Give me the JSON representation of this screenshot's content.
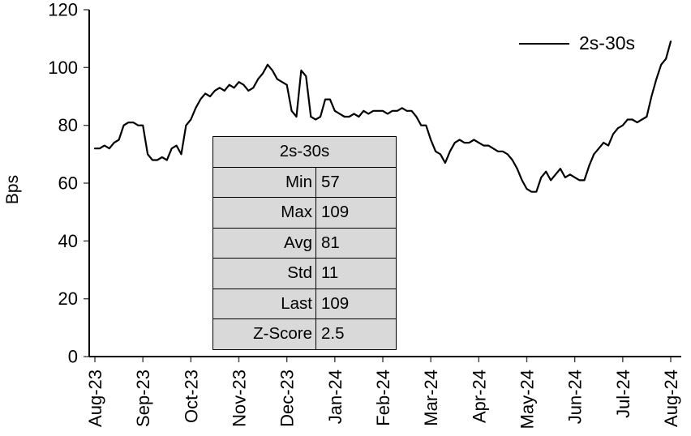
{
  "chart_data": {
    "type": "line",
    "title": "",
    "xlabel": "",
    "ylabel": "Bps",
    "ylim": [
      0,
      120
    ],
    "yticks": [
      0,
      20,
      40,
      60,
      80,
      100,
      120
    ],
    "x_tick_labels": [
      "Aug-23",
      "Sep-23",
      "Oct-23",
      "Nov-23",
      "Dec-23",
      "Jan-24",
      "Feb-24",
      "Mar-24",
      "Apr-24",
      "May-24",
      "Jun-24",
      "Jul-24",
      "Aug-24"
    ],
    "grid": false,
    "legend": {
      "label": "2s-30s",
      "color": "#000000",
      "position": "top-right"
    },
    "series": [
      {
        "name": "2s-30s",
        "color": "#000000",
        "values": [
          72,
          72,
          73,
          72,
          74,
          75,
          80,
          81,
          81,
          80,
          80,
          70,
          68,
          68,
          69,
          68,
          72,
          73,
          70,
          80,
          82,
          86,
          89,
          91,
          90,
          92,
          93,
          92,
          94,
          93,
          95,
          94,
          92,
          93,
          96,
          98,
          101,
          99,
          96,
          95,
          94,
          85,
          83,
          99,
          97,
          83,
          82,
          83,
          89,
          89,
          85,
          84,
          83,
          83,
          84,
          83,
          85,
          84,
          85,
          85,
          85,
          84,
          85,
          85,
          86,
          85,
          85,
          83,
          80,
          80,
          75,
          71,
          70,
          67,
          71,
          74,
          75,
          74,
          74,
          75,
          74,
          73,
          73,
          72,
          71,
          71,
          70,
          68,
          65,
          61,
          58,
          57,
          57,
          62,
          64,
          61,
          63,
          65,
          62,
          63,
          62,
          61,
          61,
          66,
          70,
          72,
          74,
          73,
          77,
          79,
          80,
          82,
          82,
          81,
          82,
          83,
          90,
          96,
          101,
          103,
          109
        ]
      }
    ]
  },
  "stats_table": {
    "header": "2s-30s",
    "bg_color": "#d9d9d9",
    "rows": [
      {
        "label": "Min",
        "value": "57"
      },
      {
        "label": "Max",
        "value": "109"
      },
      {
        "label": "Avg",
        "value": "81"
      },
      {
        "label": "Std",
        "value": "11"
      },
      {
        "label": "Last",
        "value": "109"
      },
      {
        "label": "Z-Score",
        "value": "2.5"
      }
    ]
  }
}
